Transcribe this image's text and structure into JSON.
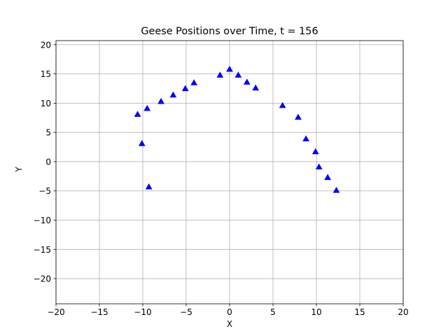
{
  "chart_data": {
    "type": "scatter",
    "title": "Geese Positions over Time, t = 156",
    "xlabel": "X",
    "ylabel": "Y",
    "xlim": [
      -20,
      20
    ],
    "ylim": [
      -24.3,
      20.7
    ],
    "xticks": [
      -20,
      -15,
      -10,
      -5,
      0,
      5,
      10,
      15,
      20
    ],
    "yticks": [
      -20,
      -15,
      -10,
      -5,
      0,
      5,
      10,
      15,
      20
    ],
    "xtick_labels": [
      "−20",
      "−15",
      "−10",
      "−5",
      "0",
      "5",
      "10",
      "15",
      "20"
    ],
    "ytick_labels": [
      "−20",
      "−15",
      "−10",
      "−5",
      "0",
      "5",
      "10",
      "15",
      "20"
    ],
    "grid": true,
    "marker": "triangle-up",
    "color": "#0000ff",
    "points": [
      {
        "x": -10.6,
        "y": 8.1
      },
      {
        "x": -10.1,
        "y": 3.1
      },
      {
        "x": -9.3,
        "y": -4.3
      },
      {
        "x": -9.5,
        "y": 9.1
      },
      {
        "x": -7.9,
        "y": 10.3
      },
      {
        "x": -6.5,
        "y": 11.4
      },
      {
        "x": -5.1,
        "y": 12.5
      },
      {
        "x": -4.1,
        "y": 13.5
      },
      {
        "x": -1.1,
        "y": 14.8
      },
      {
        "x": 0.0,
        "y": 15.8
      },
      {
        "x": 1.0,
        "y": 14.8
      },
      {
        "x": 2.0,
        "y": 13.6
      },
      {
        "x": 3.0,
        "y": 12.6
      },
      {
        "x": 6.1,
        "y": 9.6
      },
      {
        "x": 7.9,
        "y": 7.6
      },
      {
        "x": 8.8,
        "y": 3.9
      },
      {
        "x": 9.9,
        "y": 1.7
      },
      {
        "x": 10.3,
        "y": -0.9
      },
      {
        "x": 11.3,
        "y": -2.7
      },
      {
        "x": 12.3,
        "y": -4.9
      }
    ]
  }
}
